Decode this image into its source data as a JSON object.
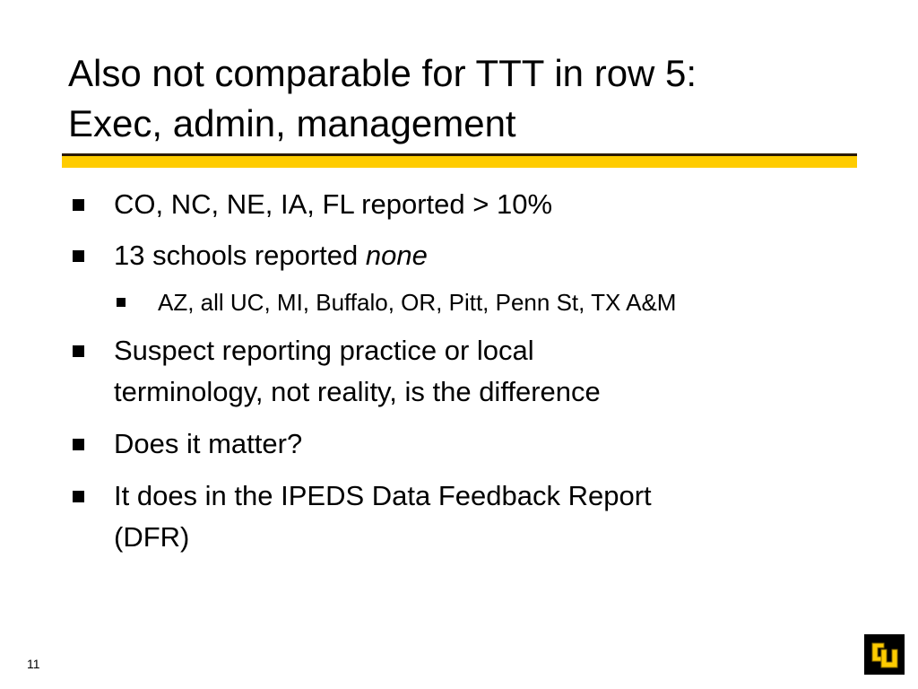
{
  "title": {
    "line1": "Also not comparable for TTT in row 5:",
    "line2": "Exec, admin, management"
  },
  "bullets": [
    {
      "text": "CO, NC, NE, IA, FL reported > 10%"
    },
    {
      "text": "13 schools reported ",
      "italic": "none"
    },
    {
      "text": "AZ, all UC, MI, Buffalo, OR, Pitt, Penn St, TX A&M"
    },
    {
      "line1": "Suspect reporting practice or local",
      "line2": "terminology, not reality, is the difference"
    },
    {
      "text": "Does it matter?"
    },
    {
      "line1": "It does in the IPEDS Data Feedback Report",
      "line2": "(DFR)"
    }
  ],
  "page_number": "11",
  "logo": {
    "text": "CU",
    "colors": {
      "background": "#000000",
      "letters": "#ffcc00"
    }
  },
  "accent_color": "#ffcc00"
}
